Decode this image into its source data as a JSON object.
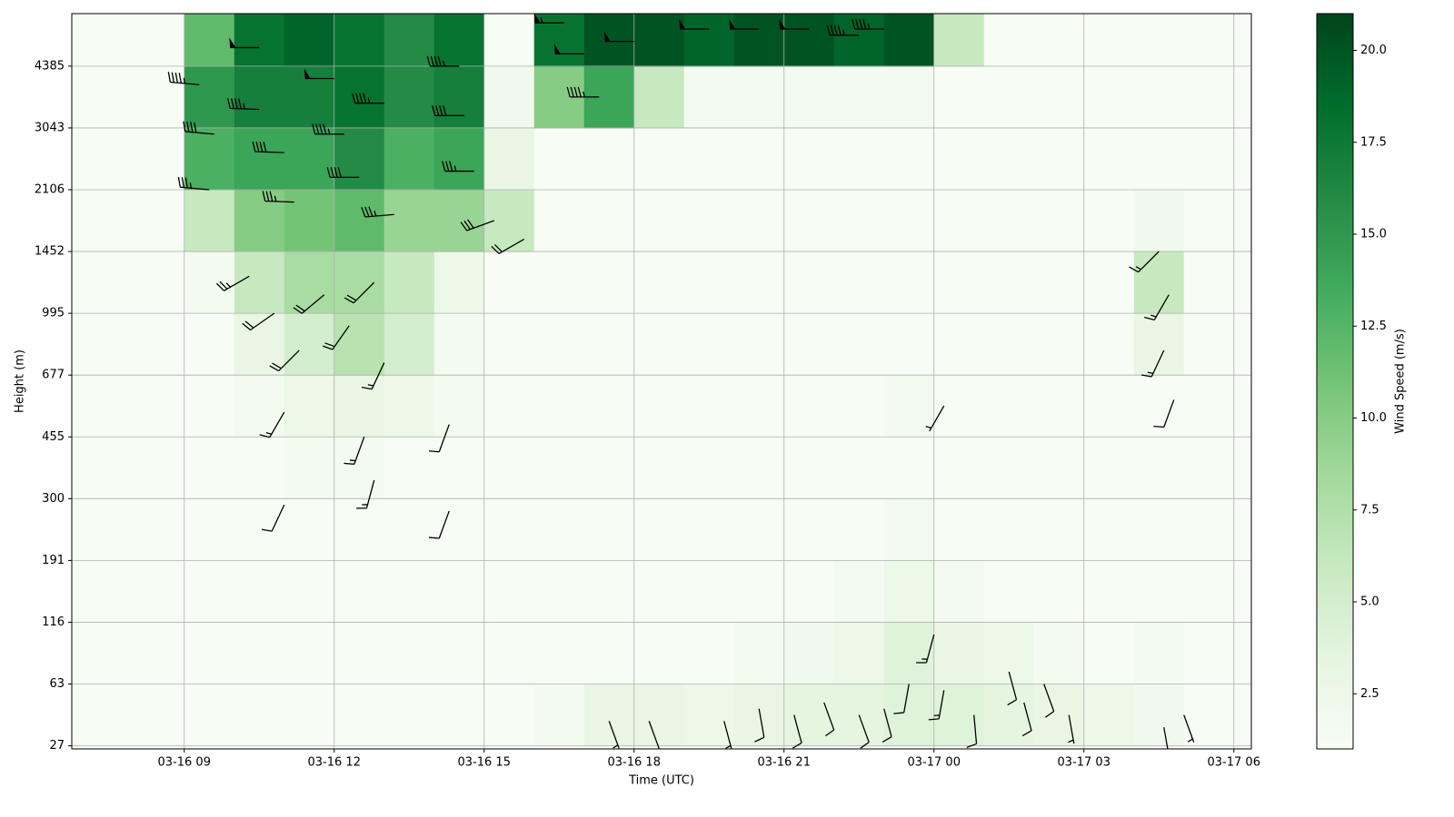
{
  "chart_data": {
    "type": "heatmap",
    "x_label": "Time (UTC)",
    "y_label": "Height (m)",
    "colorbar_label": "Wind Speed (m/s)",
    "colormap": [
      "#f7fcf5",
      "#e5f5e0",
      "#c7e9c0",
      "#a1d99b",
      "#74c476",
      "#41ab5d",
      "#238b45",
      "#006d2c",
      "#00441b"
    ],
    "grid": true,
    "xlim": [
      6.75,
      30.35
    ],
    "xticks": [
      {
        "value": 9,
        "label": "03-16 09"
      },
      {
        "value": 12,
        "label": "03-16 12"
      },
      {
        "value": 15,
        "label": "03-16 15"
      },
      {
        "value": 18,
        "label": "03-16 18"
      },
      {
        "value": 21,
        "label": "03-16 21"
      },
      {
        "value": 24,
        "label": "03-17 00"
      },
      {
        "value": 27,
        "label": "03-17 03"
      },
      {
        "value": 30,
        "label": "03-17 06"
      }
    ],
    "ylim": [
      -0.05,
      11.85
    ],
    "yticks": [
      {
        "value": 0,
        "label": "27"
      },
      {
        "value": 1,
        "label": "63"
      },
      {
        "value": 2,
        "label": "116"
      },
      {
        "value": 3,
        "label": "191"
      },
      {
        "value": 4,
        "label": "300"
      },
      {
        "value": 5,
        "label": "455"
      },
      {
        "value": 6,
        "label": "677"
      },
      {
        "value": 7,
        "label": "995"
      },
      {
        "value": 8,
        "label": "1452"
      },
      {
        "value": 9,
        "label": "2106"
      },
      {
        "value": 10,
        "label": "3043"
      },
      {
        "value": 11,
        "label": "4385"
      }
    ],
    "clim": [
      1,
      21
    ],
    "cticks": [
      {
        "value": 2.5,
        "label": "2.5"
      },
      {
        "value": 5,
        "label": "5.0"
      },
      {
        "value": 7.5,
        "label": "7.5"
      },
      {
        "value": 10,
        "label": "10.0"
      },
      {
        "value": 12.5,
        "label": "12.5"
      },
      {
        "value": 15,
        "label": "15.0"
      },
      {
        "value": 17.5,
        "label": "17.5"
      },
      {
        "value": 20,
        "label": "20.0"
      }
    ],
    "x": [
      7.5,
      8.5,
      9.5,
      10.5,
      11.5,
      12.5,
      13.5,
      14.5,
      15.5,
      16.5,
      17.5,
      18.5,
      19.5,
      20.5,
      21.5,
      22.5,
      23.5,
      24.5,
      25.5,
      26.5,
      27.5,
      28.5,
      29.5
    ],
    "y": [
      0.5,
      1.5,
      2.5,
      3.5,
      4.5,
      5.5,
      6.5,
      7.5,
      8.5,
      9.5,
      10.5,
      11.5
    ],
    "z": [
      [
        1,
        1,
        1,
        1,
        1,
        1,
        1,
        1,
        1,
        1.5,
        3,
        3,
        2.5,
        3,
        3.5,
        3.5,
        4,
        4,
        3.5,
        3,
        2.5,
        2,
        1
      ],
      [
        1,
        1,
        1,
        1,
        1,
        1,
        1,
        1,
        1,
        1,
        1,
        1,
        1,
        1.5,
        2,
        2.5,
        4,
        3,
        2.5,
        1.5,
        1,
        1.5,
        1
      ],
      [
        1,
        1,
        1,
        1,
        1,
        1,
        1,
        1,
        1,
        1,
        1,
        1,
        1,
        1,
        1,
        1.5,
        2.5,
        1.5,
        1,
        1,
        1,
        1,
        1
      ],
      [
        1,
        1,
        1,
        1,
        1,
        1,
        1,
        1,
        1,
        1,
        1,
        1,
        1,
        1,
        1,
        1,
        1.5,
        1,
        1,
        1,
        1,
        1,
        1
      ],
      [
        1,
        1,
        1,
        1,
        1.5,
        1.5,
        1,
        1,
        1,
        1,
        1,
        1,
        1,
        1,
        1,
        1,
        1,
        1,
        1,
        1,
        1,
        1,
        1
      ],
      [
        1,
        1,
        1,
        1.5,
        2.5,
        3,
        2.5,
        1.5,
        1,
        1,
        1,
        1,
        1,
        1,
        1,
        1,
        1.5,
        1,
        1,
        1,
        1,
        1,
        1
      ],
      [
        1,
        1,
        1,
        3,
        5,
        7,
        5,
        1.5,
        1,
        1,
        1,
        1,
        1,
        1,
        1,
        1,
        1,
        1,
        1,
        1,
        1,
        3,
        1
      ],
      [
        1,
        1,
        1.5,
        6,
        8,
        8,
        6,
        2.5,
        1,
        1,
        1,
        1,
        1,
        1,
        1,
        1,
        1,
        1,
        1,
        1,
        1,
        6,
        1
      ],
      [
        1,
        1,
        6,
        10,
        11,
        12,
        9,
        9,
        6,
        1,
        1,
        1,
        1,
        1,
        1,
        1,
        1,
        1,
        1,
        1,
        1,
        2,
        1
      ],
      [
        1,
        1,
        13,
        14,
        14,
        16,
        13,
        14,
        3,
        1,
        1,
        1,
        1,
        1,
        1,
        1,
        1,
        1,
        1,
        1,
        1,
        1,
        1
      ],
      [
        1,
        1,
        15,
        17,
        17,
        18,
        16,
        17,
        2,
        10,
        14,
        6,
        1.5,
        1.5,
        1.5,
        1.5,
        1.5,
        1,
        1,
        1,
        1,
        1,
        1
      ],
      [
        1,
        1,
        12,
        18,
        19,
        18,
        16,
        18,
        1,
        18,
        20,
        20,
        19,
        20,
        20,
        19,
        20,
        6,
        1,
        1,
        1,
        1,
        1
      ]
    ],
    "barbs": {
      "x": [
        9.3,
        9.6,
        9.5,
        10.5,
        10.5,
        11.0,
        11.2,
        12.0,
        12.2,
        12.5,
        13.0,
        13.2,
        14.5,
        14.6,
        14.8,
        15.2,
        15.8,
        16.6,
        17.0,
        17.3,
        18.0,
        19.5,
        20.5,
        21.5,
        22.5,
        23.0,
        10.3,
        10.8,
        11.3,
        11.8,
        12.3,
        12.8,
        13.0,
        11.0,
        12.6,
        12.8,
        14.3,
        14.3,
        11.0,
        24.2,
        28.6,
        28.7,
        28.5,
        28.8,
        17.5,
        18.3,
        19.8,
        20.5,
        21.2,
        21.8,
        22.5,
        23.0,
        23.5,
        24.0,
        24.2,
        24.8,
        25.5,
        25.8,
        26.2,
        26.7,
        28.6,
        29.0
      ],
      "y": [
        10.7,
        9.9,
        9.0,
        11.3,
        10.3,
        9.6,
        8.8,
        10.8,
        9.9,
        9.2,
        10.4,
        8.6,
        11.0,
        10.2,
        9.3,
        8.5,
        8.2,
        11.7,
        11.2,
        10.5,
        11.4,
        11.6,
        11.6,
        11.6,
        11.5,
        11.6,
        7.6,
        7.0,
        6.4,
        7.3,
        6.8,
        7.5,
        6.2,
        5.4,
        5.0,
        4.3,
        5.2,
        3.8,
        3.9,
        5.5,
        6.4,
        7.3,
        8.0,
        5.6,
        0.4,
        0.4,
        0.4,
        0.6,
        0.5,
        0.7,
        0.5,
        0.6,
        1.0,
        1.8,
        0.9,
        0.5,
        1.2,
        0.7,
        1.0,
        0.5,
        0.3,
        0.5
      ],
      "speed": [
        19,
        16,
        14,
        20,
        18,
        17,
        15,
        20,
        18,
        17,
        19,
        15,
        18,
        17,
        15,
        12,
        8,
        22,
        20,
        18,
        21,
        20,
        21,
        20,
        19,
        18,
        10,
        9,
        8,
        9,
        8,
        9,
        7,
        6,
        6,
        6,
        4,
        4,
        4,
        3,
        6,
        7,
        6,
        5,
        3,
        4,
        3,
        5,
        4,
        5,
        4,
        5,
        5,
        6,
        6,
        4,
        4,
        4,
        4,
        3,
        3,
        3
      ],
      "direction": [
        275,
        275,
        275,
        270,
        272,
        272,
        272,
        270,
        270,
        270,
        270,
        265,
        270,
        270,
        270,
        250,
        240,
        270,
        270,
        270,
        270,
        270,
        270,
        270,
        270,
        270,
        240,
        235,
        225,
        230,
        215,
        225,
        205,
        210,
        200,
        195,
        200,
        200,
        205,
        210,
        205,
        210,
        225,
        200,
        160,
        160,
        165,
        170,
        165,
        160,
        160,
        165,
        190,
        195,
        190,
        175,
        165,
        165,
        160,
        170,
        170,
        160
      ]
    }
  }
}
